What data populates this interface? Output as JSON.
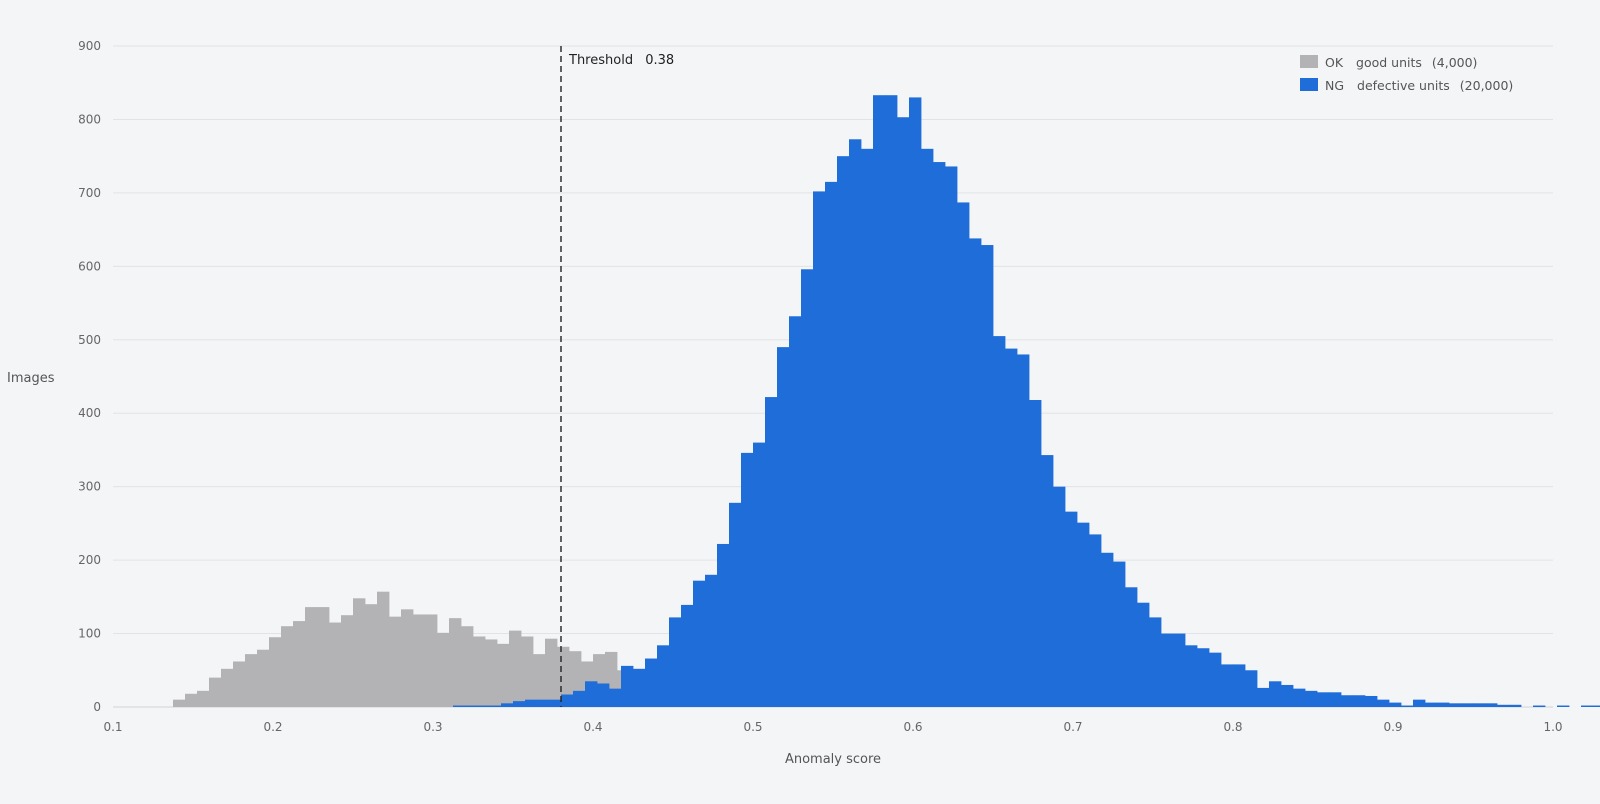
{
  "chart_data": {
    "type": "histogram",
    "xlabel": "Anomaly score",
    "ylabel": "Images",
    "xlim": [
      0.1,
      1.0
    ],
    "ylim": [
      0,
      900
    ],
    "x_ticks": [
      "0.1",
      "0.2",
      "0.3",
      "0.4",
      "0.5",
      "0.6",
      "0.7",
      "0.8",
      "0.9",
      "1.0"
    ],
    "y_ticks": [
      "0",
      "100",
      "200",
      "300",
      "400",
      "500",
      "600",
      "700",
      "800",
      "900"
    ],
    "grid": "horizontal",
    "legend_position": "top-right",
    "bin_width": 0.0075,
    "threshold": {
      "label": "Threshold",
      "value_text": "0.38",
      "value": 0.38
    },
    "legend": [
      {
        "code": "OK",
        "desc": "good units",
        "count": "(4,000)"
      },
      {
        "code": "NG",
        "desc": "defective units",
        "count": "(20,000)"
      }
    ],
    "series": [
      {
        "name": "OK good units (4,000)",
        "color": "#b3b3b6",
        "bin_start": 0.1375,
        "values": [
          10,
          18,
          22,
          40,
          52,
          62,
          72,
          78,
          95,
          110,
          117,
          136,
          136,
          115,
          125,
          148,
          140,
          157,
          123,
          133,
          126,
          126,
          101,
          121,
          110,
          96,
          92,
          86,
          104,
          96,
          72,
          93,
          82,
          76,
          62,
          72,
          75,
          50,
          48,
          46,
          50,
          52,
          43,
          42,
          46,
          42,
          36,
          28,
          32,
          35,
          34,
          30,
          22,
          16,
          12,
          10,
          8,
          7,
          6,
          6,
          5,
          4,
          3,
          3,
          2,
          2,
          2,
          1,
          1,
          1,
          1,
          1
        ]
      },
      {
        "name": "NG defective units (20,000)",
        "color": "#1f6dd8",
        "bin_start": 0.3125,
        "values": [
          2,
          2,
          2,
          2,
          5,
          8,
          10,
          10,
          10,
          17,
          22,
          35,
          32,
          25,
          56,
          52,
          66,
          84,
          122,
          139,
          172,
          180,
          222,
          278,
          346,
          360,
          422,
          490,
          532,
          596,
          702,
          715,
          750,
          773,
          760,
          833,
          833,
          803,
          830,
          760,
          742,
          736,
          687,
          638,
          629,
          505,
          488,
          480,
          418,
          343,
          300,
          266,
          251,
          235,
          210,
          198,
          163,
          142,
          122,
          100,
          100,
          84,
          80,
          74,
          58,
          58,
          50,
          26,
          35,
          30,
          25,
          22,
          20,
          20,
          16,
          16,
          15,
          10,
          6,
          2,
          10,
          6,
          6,
          5,
          5,
          5,
          5,
          3,
          3,
          0,
          2,
          0,
          2,
          0,
          2,
          2,
          2,
          2,
          0,
          0,
          2,
          2,
          2,
          2
        ]
      }
    ]
  }
}
